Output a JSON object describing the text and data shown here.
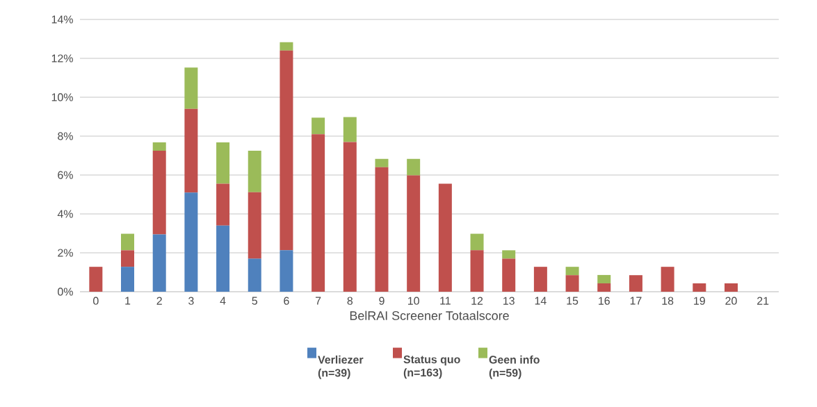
{
  "chart_data": {
    "type": "bar",
    "stacked": true,
    "xlabel": "BelRAI Screener Totaalscore",
    "categories": [
      "0",
      "1",
      "2",
      "3",
      "4",
      "5",
      "6",
      "7",
      "8",
      "9",
      "10",
      "11",
      "12",
      "13",
      "14",
      "15",
      "16",
      "17",
      "18",
      "19",
      "20",
      "21"
    ],
    "series": [
      {
        "name": "Verliezer (n=39)",
        "color": "#4f81bd",
        "values": [
          null,
          1.28,
          2.95,
          5.1,
          3.4,
          1.7,
          2.13,
          null,
          null,
          null,
          null,
          null,
          null,
          null,
          null,
          null,
          null,
          null,
          null,
          null,
          null,
          null
        ]
      },
      {
        "name": "Status quo (n=163)",
        "color": "#c0504d",
        "values": [
          1.28,
          0.85,
          4.3,
          4.3,
          2.15,
          3.42,
          10.27,
          8.1,
          7.7,
          6.4,
          5.98,
          5.55,
          2.13,
          1.7,
          1.28,
          0.85,
          0.43,
          0.85,
          1.28,
          0.43,
          0.43,
          null
        ]
      },
      {
        "name": "Geen info (n=59)",
        "color": "#9bbb59",
        "values": [
          null,
          0.85,
          0.43,
          2.13,
          2.13,
          2.13,
          0.43,
          0.85,
          1.28,
          0.43,
          0.85,
          null,
          0.85,
          0.43,
          null,
          0.43,
          0.43,
          null,
          null,
          null,
          null,
          null
        ]
      }
    ],
    "ylim": [
      0,
      14
    ],
    "yticks": [
      {
        "value": 0,
        "label": "0%"
      },
      {
        "value": 2,
        "label": "2%"
      },
      {
        "value": 4,
        "label": "4%"
      },
      {
        "value": 6,
        "label": "6%"
      },
      {
        "value": 8,
        "label": "8%"
      },
      {
        "value": 10,
        "label": "10%"
      },
      {
        "value": 12,
        "label": "12%"
      },
      {
        "value": 14,
        "label": "14%"
      }
    ],
    "grid": "y",
    "legend": "bottom"
  }
}
